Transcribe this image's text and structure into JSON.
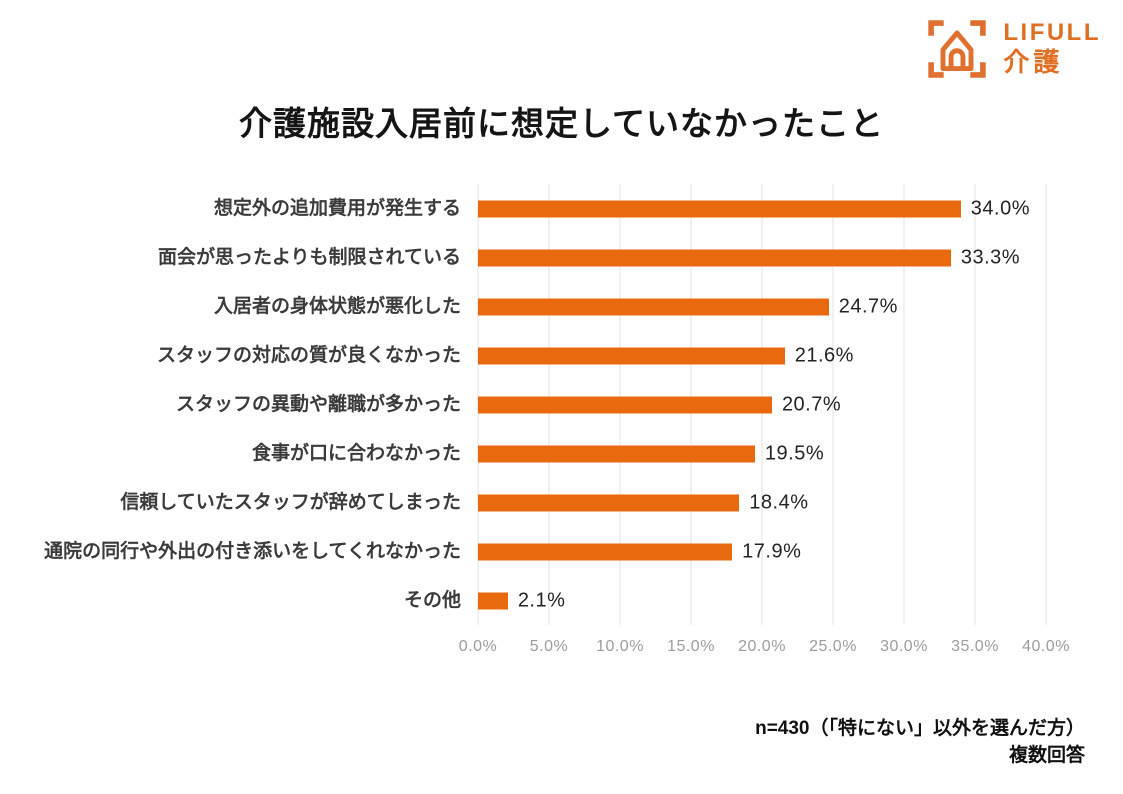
{
  "logo": {
    "brand": "LIFULL",
    "product": "介護",
    "color": "#E06F23"
  },
  "title": "介護施設入居前に想定していなかったこと",
  "chart_data": {
    "type": "bar",
    "orientation": "horizontal",
    "title": "介護施設入居前に想定していなかったこと",
    "categories": [
      "想定外の追加費用が発生する",
      "面会が思ったよりも制限されている",
      "入居者の身体状態が悪化した",
      "スタッフの対応の質が良くなかった",
      "スタッフの異動や離職が多かった",
      "食事が口に合わなかった",
      "信頼していたスタッフが辞めてしまった",
      "通院の同行や外出の付き添いをしてくれなかった",
      "その他"
    ],
    "values": [
      34.0,
      33.3,
      24.7,
      21.6,
      20.7,
      19.5,
      18.4,
      17.9,
      2.1
    ],
    "value_suffix": "%",
    "xlim": [
      0,
      40
    ],
    "x_ticks": [
      "0.0%",
      "5.0%",
      "10.0%",
      "15.0%",
      "20.0%",
      "25.0%",
      "30.0%",
      "35.0%",
      "40.0%"
    ],
    "bar_color": "#E8690E",
    "grid": true,
    "legend": "none"
  },
  "footer": {
    "line1": "n=430（「特にない」以外を選んだ方）",
    "line2": "複数回答"
  }
}
